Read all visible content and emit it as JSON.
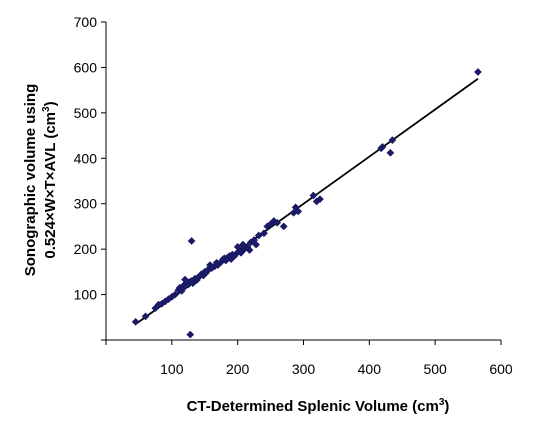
{
  "chart_data": {
    "type": "scatter",
    "title": "",
    "xlabel": "CT-Determined Splenic Volume (cm",
    "xlabel_sup": "3",
    "xlabel_tail": ")",
    "ylabel_line1": "Sonographic volume using",
    "ylabel_line2": "0.524×W×T×AVL (cm",
    "ylabel_sup": "3",
    "ylabel_tail": ")",
    "xlim": [
      0,
      600
    ],
    "ylim": [
      0,
      700
    ],
    "x_ticks": [
      0,
      100,
      200,
      300,
      400,
      500,
      600
    ],
    "y_ticks": [
      0,
      100,
      200,
      300,
      400,
      500,
      600,
      700
    ],
    "x_tick_labels": [
      "",
      "100",
      "200",
      "300",
      "400",
      "500",
      "600"
    ],
    "y_tick_labels": [
      "",
      "100",
      "200",
      "300",
      "400",
      "500",
      "600",
      "700"
    ],
    "grid": false,
    "legend": "none",
    "colors": {
      "marker": "#1a1a66",
      "trendline": "#000000",
      "axis": "#000000"
    },
    "trendline": {
      "x": [
        45,
        565
      ],
      "y": [
        35,
        575
      ]
    },
    "series": [
      {
        "marker": "diamond",
        "x": [
          45,
          60,
          75,
          80,
          85,
          90,
          95,
          100,
          105,
          110,
          112,
          115,
          118,
          120,
          122,
          125,
          127,
          130,
          132,
          135,
          138,
          140,
          142,
          145,
          148,
          150,
          152,
          155,
          158,
          160,
          162,
          165,
          168,
          170,
          172,
          175,
          178,
          180,
          182,
          185,
          188,
          190,
          192,
          195,
          198,
          200,
          202,
          205,
          208,
          210,
          215,
          218,
          220,
          225,
          228,
          232,
          240,
          245,
          250,
          255,
          260,
          270,
          285,
          288,
          292,
          315,
          320,
          325,
          418,
          420,
          432,
          435,
          565,
          120,
          130,
          128
        ],
        "y": [
          40,
          52,
          70,
          78,
          80,
          85,
          90,
          95,
          100,
          110,
          115,
          108,
          120,
          118,
          125,
          122,
          128,
          130,
          125,
          135,
          132,
          138,
          140,
          145,
          142,
          150,
          148,
          155,
          165,
          158,
          160,
          162,
          170,
          165,
          168,
          172,
          178,
          180,
          175,
          182,
          185,
          178,
          188,
          185,
          190,
          205,
          195,
          192,
          210,
          200,
          205,
          198,
          215,
          220,
          210,
          230,
          235,
          250,
          255,
          262,
          258,
          250,
          280,
          292,
          283,
          318,
          305,
          310,
          422,
          425,
          412,
          440,
          590,
          133,
          218,
          12
        ]
      }
    ]
  }
}
